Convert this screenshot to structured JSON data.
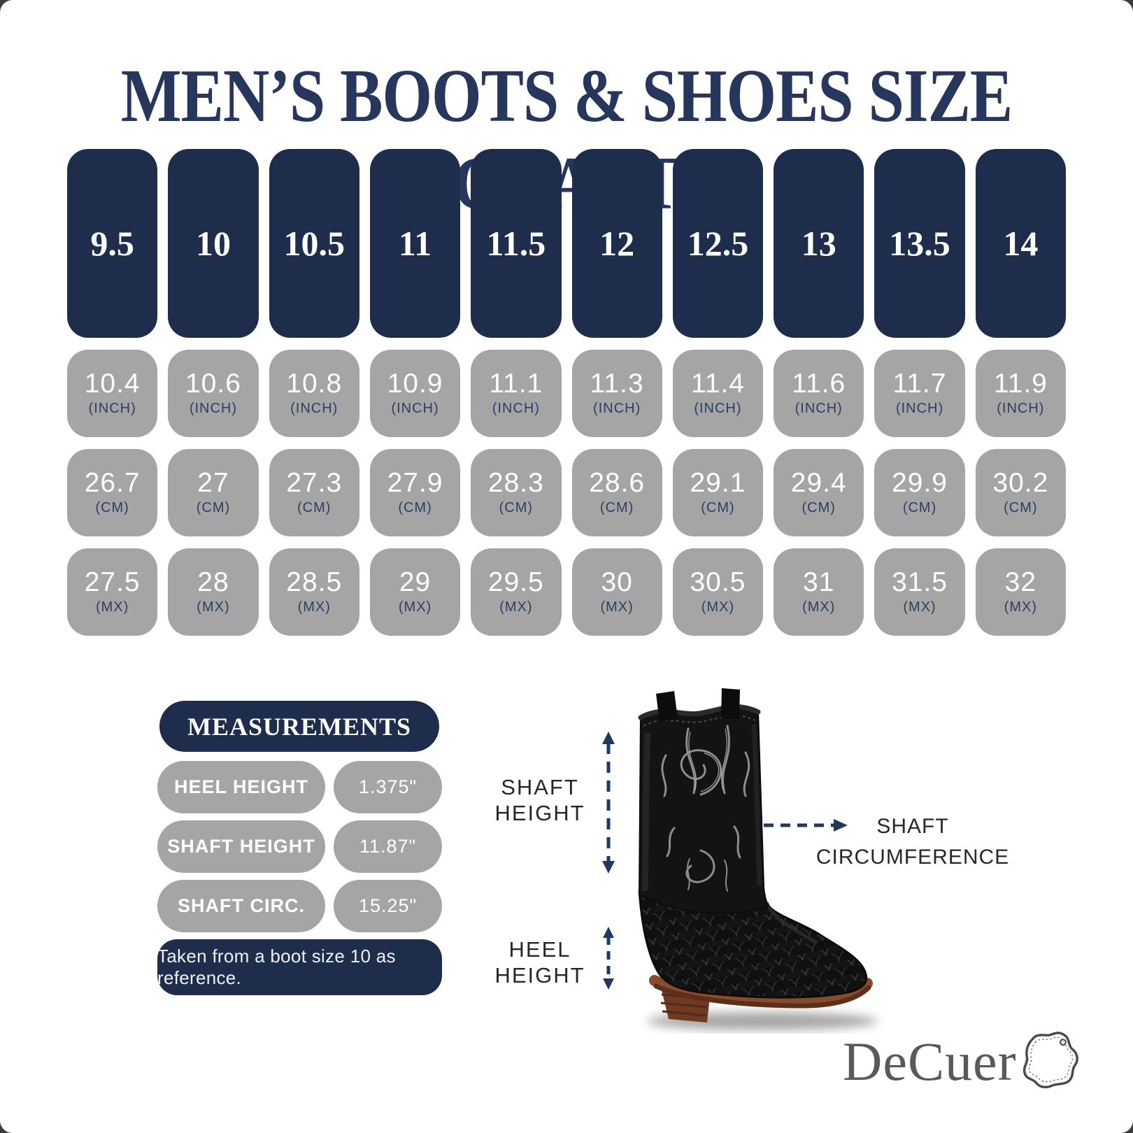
{
  "chart_data": {
    "type": "table",
    "title": "MEN’S BOOTS & SHOES SIZE CHART",
    "us_sizes": [
      9.5,
      10,
      10.5,
      11,
      11.5,
      12,
      12.5,
      13,
      13.5,
      14
    ],
    "conversion_rows": [
      {
        "unit": "INCH",
        "unit_label": "(INCH)",
        "values": [
          10.4,
          10.6,
          10.8,
          10.9,
          11.1,
          11.3,
          11.4,
          11.6,
          11.7,
          11.9
        ]
      },
      {
        "unit": "CM",
        "unit_label": "(CM)",
        "values": [
          26.7,
          27,
          27.3,
          27.9,
          28.3,
          28.6,
          29.1,
          29.4,
          29.9,
          30.2
        ]
      },
      {
        "unit": "MX",
        "unit_label": "(MX)",
        "values": [
          27.5,
          28,
          28.5,
          29,
          29.5,
          30,
          30.5,
          31,
          31.5,
          32
        ]
      }
    ]
  },
  "measurements": {
    "header": "MEASUREMENTS",
    "rows": [
      {
        "label": "HEEL HEIGHT",
        "value": "1.375\""
      },
      {
        "label": "SHAFT HEIGHT",
        "value": "11.87\""
      },
      {
        "label": "SHAFT CIRC.",
        "value": "15.25\""
      }
    ],
    "note": "Taken from a boot size 10 as reference."
  },
  "diagram": {
    "shaft_height": {
      "line1": "SHAFT",
      "line2": "HEIGHT"
    },
    "shaft_circumference": {
      "line1": "SHAFT",
      "line2": "CIRCUMFERENCE"
    },
    "heel_height": {
      "line1": "HEEL",
      "line2": "HEIGHT"
    }
  },
  "brand": {
    "name": "DeCuer",
    "icon": "leather-hide-icon"
  },
  "colors": {
    "navy": "#1e2d4b",
    "title_navy": "#26365c",
    "gray": "#a5a5a5",
    "unit_navy": "#2c3f63",
    "label_dark": "#26272b",
    "arrow_navy": "#1f3a60",
    "brand_gray": "#59595b",
    "sole_brown": "#8a4a2e"
  }
}
